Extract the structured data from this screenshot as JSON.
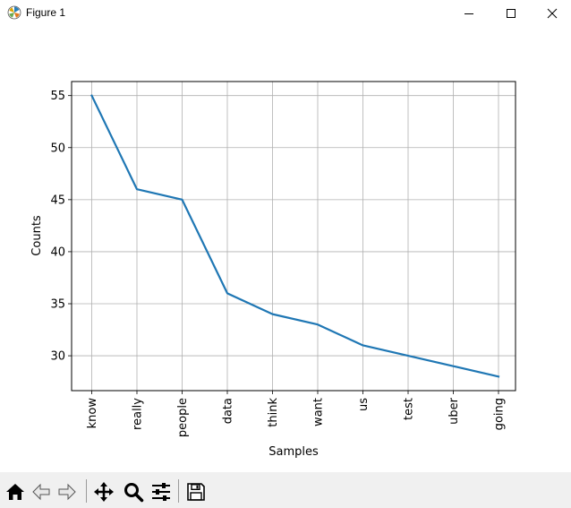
{
  "window": {
    "title": "Figure 1",
    "icons": {
      "app": "matplotlib-logo-icon",
      "minimize": "minimize-icon",
      "maximize": "maximize-icon",
      "close": "close-icon"
    }
  },
  "toolbar": {
    "buttons": [
      {
        "name": "home-icon"
      },
      {
        "name": "back-arrow-icon"
      },
      {
        "name": "forward-arrow-icon"
      },
      {
        "name": "pan-move-icon"
      },
      {
        "name": "zoom-magnifier-icon"
      },
      {
        "name": "configure-subplots-icon"
      },
      {
        "name": "save-floppy-icon"
      }
    ]
  },
  "chart_data": {
    "type": "line",
    "title": "",
    "xlabel": "Samples",
    "ylabel": "Counts",
    "categories": [
      "know",
      "really",
      "people",
      "data",
      "think",
      "want",
      "us",
      "test",
      "uber",
      "going"
    ],
    "values": [
      55,
      46,
      45,
      36,
      34,
      33,
      31,
      30,
      29,
      28
    ],
    "yticks": [
      30,
      35,
      40,
      45,
      50,
      55
    ],
    "ylim": [
      26.65,
      56.35
    ],
    "grid": true,
    "legend": "none",
    "line_color": "#1f77b4"
  }
}
